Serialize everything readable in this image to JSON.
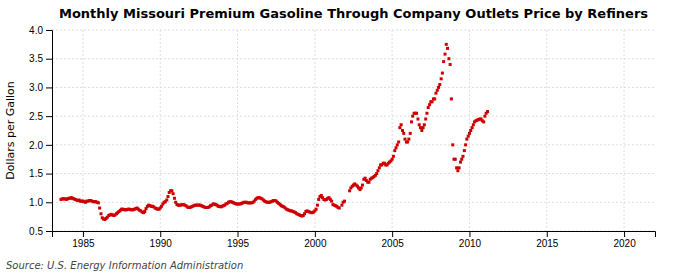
{
  "chart_data": {
    "type": "scatter",
    "title": "Monthly Missouri Premium Gasoline Through Company Outlets Price by Refiners",
    "ylabel": "Dollars per Gallon",
    "annotations": [
      "Source: U.S. Energy Information Administration"
    ],
    "color": "#cc0000",
    "marker": "square",
    "grid": true,
    "xlim": [
      1983,
      2022
    ],
    "xticks": [
      1985,
      1990,
      1995,
      2000,
      2005,
      2010,
      2015,
      2020
    ],
    "ylim": [
      0.5,
      4.0
    ],
    "yticks": [
      0.5,
      {
        "value": 1.0,
        "label": "1.0"
      },
      1.5,
      {
        "value": 2.0,
        "label": "2.0"
      },
      2.5,
      {
        "value": 3.0,
        "label": "3.0"
      },
      3.5,
      {
        "value": 4.0,
        "label": "4.0"
      }
    ],
    "x": [
      1983.58,
      1983.67,
      1983.75,
      1983.83,
      1983.92,
      1984.0,
      1984.08,
      1984.17,
      1984.25,
      1984.33,
      1984.42,
      1984.5,
      1984.58,
      1984.67,
      1984.75,
      1984.83,
      1984.92,
      1985.0,
      1985.08,
      1985.17,
      1985.25,
      1985.33,
      1985.42,
      1985.5,
      1985.58,
      1985.67,
      1985.75,
      1985.83,
      1985.92,
      1986.0,
      1986.08,
      1986.17,
      1986.25,
      1986.33,
      1986.42,
      1986.5,
      1986.58,
      1986.67,
      1986.75,
      1986.83,
      1986.92,
      1987.0,
      1987.08,
      1987.17,
      1987.25,
      1987.33,
      1987.42,
      1987.5,
      1987.58,
      1987.67,
      1987.75,
      1987.83,
      1987.92,
      1988.0,
      1988.08,
      1988.17,
      1988.25,
      1988.33,
      1988.42,
      1988.5,
      1988.58,
      1988.67,
      1988.75,
      1988.83,
      1988.92,
      1989.0,
      1989.08,
      1989.17,
      1989.25,
      1989.33,
      1989.42,
      1989.5,
      1989.58,
      1989.67,
      1989.75,
      1989.83,
      1989.92,
      1990.0,
      1990.08,
      1990.17,
      1990.25,
      1990.33,
      1990.42,
      1990.5,
      1990.58,
      1990.67,
      1990.75,
      1990.83,
      1990.92,
      1991.0,
      1991.08,
      1991.17,
      1991.25,
      1991.33,
      1991.42,
      1991.5,
      1991.58,
      1991.67,
      1991.75,
      1991.83,
      1991.92,
      1992.0,
      1992.08,
      1992.17,
      1992.25,
      1992.33,
      1992.42,
      1992.5,
      1992.58,
      1992.67,
      1992.75,
      1992.83,
      1992.92,
      1993.0,
      1993.08,
      1993.17,
      1993.25,
      1993.33,
      1993.42,
      1993.5,
      1993.58,
      1993.67,
      1993.75,
      1993.83,
      1993.92,
      1994.0,
      1994.08,
      1994.17,
      1994.25,
      1994.33,
      1994.42,
      1994.5,
      1994.58,
      1994.67,
      1994.75,
      1994.83,
      1994.92,
      1995.0,
      1995.08,
      1995.17,
      1995.25,
      1995.33,
      1995.42,
      1995.5,
      1995.58,
      1995.67,
      1995.75,
      1995.83,
      1995.92,
      1996.0,
      1996.08,
      1996.17,
      1996.25,
      1996.33,
      1996.42,
      1996.5,
      1996.58,
      1996.67,
      1996.75,
      1996.83,
      1996.92,
      1997.0,
      1997.08,
      1997.17,
      1997.25,
      1997.33,
      1997.42,
      1997.5,
      1997.58,
      1997.67,
      1997.75,
      1997.83,
      1997.92,
      1998.0,
      1998.08,
      1998.17,
      1998.25,
      1998.33,
      1998.42,
      1998.5,
      1998.58,
      1998.67,
      1998.75,
      1998.83,
      1998.92,
      1999.0,
      1999.08,
      1999.17,
      1999.25,
      1999.33,
      1999.42,
      1999.5,
      1999.58,
      1999.67,
      1999.75,
      1999.83,
      1999.92,
      2000.0,
      2000.08,
      2000.17,
      2000.25,
      2000.33,
      2000.42,
      2000.5,
      2000.58,
      2000.67,
      2000.75,
      2000.83,
      2000.92,
      2001.0,
      2001.08,
      2001.17,
      2001.25,
      2001.33,
      2001.42,
      2001.5,
      2001.58,
      2001.75,
      2001.83,
      2001.92,
      2002.25,
      2002.33,
      2002.42,
      2002.5,
      2002.58,
      2002.67,
      2002.75,
      2002.83,
      2002.92,
      2003.0,
      2003.08,
      2003.17,
      2003.25,
      2003.33,
      2003.42,
      2003.5,
      2003.58,
      2003.67,
      2003.75,
      2003.83,
      2003.92,
      2004.0,
      2004.08,
      2004.17,
      2004.25,
      2004.33,
      2004.42,
      2004.5,
      2004.58,
      2004.67,
      2004.75,
      2004.83,
      2004.92,
      2005.0,
      2005.08,
      2005.17,
      2005.25,
      2005.33,
      2005.42,
      2005.5,
      2005.58,
      2005.67,
      2005.75,
      2005.83,
      2005.92,
      2006.0,
      2006.08,
      2006.17,
      2006.25,
      2006.33,
      2006.42,
      2006.5,
      2006.58,
      2006.67,
      2006.75,
      2006.83,
      2006.92,
      2007.0,
      2007.08,
      2007.17,
      2007.25,
      2007.33,
      2007.42,
      2007.5,
      2007.58,
      2007.67,
      2007.75,
      2007.83,
      2007.92,
      2008.0,
      2008.08,
      2008.17,
      2008.25,
      2008.33,
      2008.42,
      2008.5,
      2008.58,
      2008.67,
      2008.75,
      2008.83,
      2008.92,
      2009.0,
      2009.08,
      2009.17,
      2009.25,
      2009.33,
      2009.42,
      2009.5,
      2009.58,
      2009.67,
      2009.75,
      2009.83,
      2009.92,
      2010.0,
      2010.08,
      2010.17,
      2010.25,
      2010.33,
      2010.42,
      2010.5,
      2010.58,
      2010.67,
      2010.75,
      2010.83,
      2010.92,
      2011.0,
      2011.08,
      2011.17
    ],
    "values": [
      1.05,
      1.06,
      1.06,
      1.06,
      1.05,
      1.06,
      1.07,
      1.07,
      1.08,
      1.07,
      1.06,
      1.05,
      1.04,
      1.03,
      1.04,
      1.02,
      1.02,
      1.02,
      1.01,
      1.0,
      1.02,
      1.02,
      1.03,
      1.03,
      1.02,
      1.01,
      1.01,
      1.01,
      1.0,
      0.99,
      0.9,
      0.8,
      0.73,
      0.71,
      0.7,
      0.72,
      0.74,
      0.77,
      0.78,
      0.79,
      0.78,
      0.77,
      0.78,
      0.8,
      0.82,
      0.84,
      0.86,
      0.88,
      0.88,
      0.87,
      0.87,
      0.87,
      0.88,
      0.88,
      0.87,
      0.87,
      0.87,
      0.88,
      0.89,
      0.9,
      0.88,
      0.86,
      0.85,
      0.83,
      0.82,
      0.84,
      0.89,
      0.93,
      0.95,
      0.94,
      0.93,
      0.93,
      0.92,
      0.9,
      0.89,
      0.88,
      0.88,
      0.9,
      0.93,
      0.97,
      1.0,
      1.01,
      1.04,
      1.1,
      1.17,
      1.2,
      1.2,
      1.15,
      1.07,
      1.0,
      0.96,
      0.95,
      0.95,
      0.95,
      0.96,
      0.96,
      0.95,
      0.94,
      0.92,
      0.91,
      0.91,
      0.92,
      0.93,
      0.94,
      0.95,
      0.95,
      0.95,
      0.95,
      0.95,
      0.94,
      0.93,
      0.92,
      0.91,
      0.91,
      0.91,
      0.92,
      0.94,
      0.95,
      0.97,
      0.97,
      0.96,
      0.95,
      0.93,
      0.93,
      0.92,
      0.93,
      0.94,
      0.95,
      0.97,
      0.98,
      1.0,
      1.01,
      1.01,
      1.0,
      0.99,
      0.98,
      0.97,
      0.97,
      0.97,
      0.97,
      0.98,
      0.99,
      1.0,
      1.0,
      1.0,
      0.99,
      0.99,
      0.99,
      0.99,
      1.0,
      1.02,
      1.05,
      1.07,
      1.08,
      1.08,
      1.07,
      1.06,
      1.04,
      1.02,
      1.01,
      1.0,
      1.0,
      1.0,
      1.01,
      1.02,
      1.03,
      1.03,
      1.02,
      1.0,
      0.98,
      0.96,
      0.94,
      0.93,
      0.92,
      0.9,
      0.88,
      0.87,
      0.86,
      0.85,
      0.85,
      0.84,
      0.83,
      0.82,
      0.8,
      0.79,
      0.78,
      0.77,
      0.76,
      0.77,
      0.8,
      0.84,
      0.85,
      0.84,
      0.83,
      0.82,
      0.82,
      0.83,
      0.85,
      0.88,
      0.95,
      1.05,
      1.1,
      1.12,
      1.08,
      1.05,
      1.04,
      1.05,
      1.07,
      1.08,
      1.05,
      1.02,
      0.96,
      0.95,
      0.94,
      0.93,
      0.91,
      0.9,
      0.95,
      1.0,
      1.02,
      1.2,
      1.25,
      1.28,
      1.3,
      1.32,
      1.3,
      1.28,
      1.25,
      1.22,
      1.25,
      1.3,
      1.4,
      1.42,
      1.38,
      1.35,
      1.35,
      1.4,
      1.42,
      1.43,
      1.45,
      1.47,
      1.5,
      1.55,
      1.6,
      1.65,
      1.65,
      1.68,
      1.68,
      1.65,
      1.65,
      1.68,
      1.7,
      1.72,
      1.75,
      1.8,
      1.9,
      1.95,
      2.0,
      2.05,
      2.3,
      2.35,
      2.25,
      2.2,
      2.1,
      2.05,
      2.05,
      2.1,
      2.2,
      2.4,
      2.5,
      2.55,
      2.55,
      2.55,
      2.45,
      2.35,
      2.3,
      2.25,
      2.3,
      2.35,
      2.45,
      2.55,
      2.65,
      2.7,
      2.75,
      2.75,
      2.8,
      2.8,
      2.9,
      2.95,
      3.0,
      3.05,
      3.15,
      3.25,
      3.45,
      3.58,
      3.75,
      3.68,
      3.5,
      3.4,
      2.8,
      2.0,
      1.75,
      1.75,
      1.6,
      1.55,
      1.6,
      1.7,
      1.75,
      1.8,
      1.9,
      2.0,
      2.1,
      2.15,
      2.2,
      2.25,
      2.3,
      2.35,
      2.4,
      2.42,
      2.43,
      2.44,
      2.45,
      2.45,
      2.42,
      2.4,
      2.5,
      2.55,
      2.58
    ]
  }
}
